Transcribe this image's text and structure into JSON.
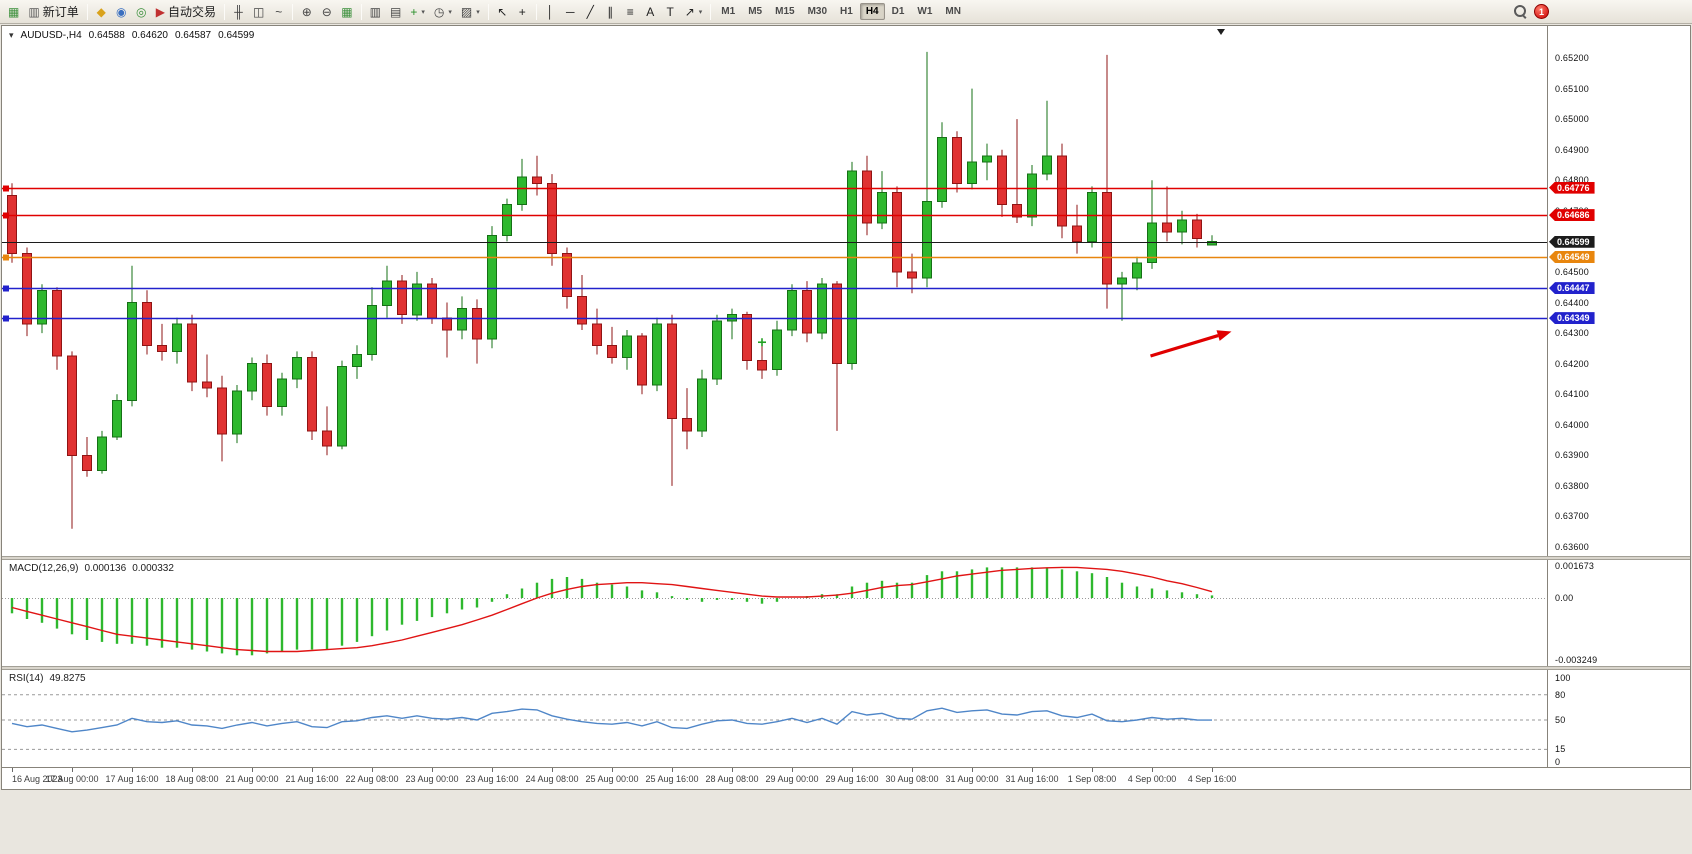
{
  "toolbar": {
    "groups": [
      {
        "items": [
          {
            "name": "new-chart",
            "glyph": "▦",
            "color": "#3a8f3a"
          },
          {
            "name": "new-order",
            "glyph": "▥",
            "color": "#5a5a5a",
            "label": "新订单"
          }
        ]
      },
      {
        "items": [
          {
            "name": "metaeditor",
            "glyph": "◆",
            "color": "#d9a21b"
          },
          {
            "name": "strategy-tester",
            "glyph": "◉",
            "color": "#3a6fc0"
          },
          {
            "name": "market-watch",
            "glyph": "◎",
            "color": "#3a8f3a"
          },
          {
            "name": "auto-trading",
            "glyph": "▶",
            "color": "#c03030",
            "label": "自动交易"
          }
        ]
      },
      {
        "items": [
          {
            "name": "bar-chart-mode",
            "glyph": "╫",
            "color": "#444444"
          },
          {
            "name": "candlestick-mode",
            "glyph": "◫",
            "color": "#444444"
          },
          {
            "name": "line-chart-mode",
            "glyph": "~",
            "color": "#444444"
          }
        ]
      },
      {
        "items": [
          {
            "name": "zoom-in",
            "glyph": "⊕",
            "color": "#444444"
          },
          {
            "name": "zoom-out",
            "glyph": "⊖",
            "color": "#444444"
          },
          {
            "name": "tile-windows",
            "glyph": "▦",
            "color": "#3a8f3a"
          }
        ]
      },
      {
        "items": [
          {
            "name": "auto-scroll",
            "glyph": "▥",
            "color": "#444444"
          },
          {
            "name": "chart-shift",
            "glyph": "▤",
            "color": "#444444"
          },
          {
            "name": "indicators",
            "glyph": "+",
            "color": "#2a8f2a",
            "caret": true
          },
          {
            "name": "periods",
            "glyph": "◷",
            "color": "#444444",
            "caret": true
          },
          {
            "name": "templates",
            "glyph": "▨",
            "color": "#444444",
            "caret": true
          }
        ]
      },
      {
        "items": [
          {
            "name": "cursor",
            "glyph": "↖",
            "color": "#222222"
          },
          {
            "name": "crosshair",
            "glyph": "+",
            "color": "#222222"
          }
        ]
      },
      {
        "items": [
          {
            "name": "vertical-line-tool",
            "glyph": "│",
            "color": "#222222"
          },
          {
            "name": "horizontal-line-tool",
            "glyph": "─",
            "color": "#222222"
          },
          {
            "name": "trend-line-tool",
            "glyph": "╱",
            "color": "#222222"
          },
          {
            "name": "equidistant-channel-tool",
            "glyph": "∥",
            "color": "#222222"
          },
          {
            "name": "fibonacci-tool",
            "glyph": "≡",
            "color": "#222222"
          },
          {
            "name": "text-tool",
            "glyph": "A",
            "color": "#222222"
          },
          {
            "name": "text-label-tool",
            "glyph": "T",
            "color": "#222222"
          },
          {
            "name": "arrows-tool",
            "glyph": "↗",
            "color": "#222222",
            "caret": true
          }
        ]
      }
    ],
    "timeframes": [
      {
        "label": "M1"
      },
      {
        "label": "M5"
      },
      {
        "label": "M15"
      },
      {
        "label": "M30"
      },
      {
        "label": "H1"
      },
      {
        "label": "H4",
        "active": true
      },
      {
        "label": "D1"
      },
      {
        "label": "W1"
      },
      {
        "label": "MN"
      }
    ],
    "notification_count": "1"
  },
  "chart": {
    "symbol_period": "AUDUSD-,H4",
    "ohlc": {
      "open": "0.64588",
      "high": "0.64620",
      "low": "0.64587",
      "close": "0.64599"
    }
  },
  "chart_data": {
    "type": "candlestick",
    "symbol": "AUDUSD",
    "timeframe": "H4",
    "bull_color": "#2eb82e",
    "bull_border": "#157015",
    "bear_color": "#e03232",
    "bear_border": "#8f1414",
    "candles_per_label": 4,
    "x_labels": [
      "16 Aug 2023",
      "17 Aug 00:00",
      "17 Aug 16:00",
      "18 Aug 08:00",
      "21 Aug 00:00",
      "21 Aug 16:00",
      "22 Aug 08:00",
      "23 Aug 00:00",
      "23 Aug 16:00",
      "24 Aug 08:00",
      "25 Aug 00:00",
      "25 Aug 16:00",
      "28 Aug 08:00",
      "29 Aug 00:00",
      "29 Aug 16:00",
      "30 Aug 08:00",
      "31 Aug 00:00",
      "31 Aug 16:00",
      "1 Sep 08:00",
      "4 Sep 00:00",
      "4 Sep 16:00"
    ],
    "price_axis": {
      "tick_labels": [
        "0.65200",
        "0.65100",
        "0.65000",
        "0.64900",
        "0.64800",
        "0.64700",
        "0.64600",
        "0.64500",
        "0.64400",
        "0.64300",
        "0.64200",
        "0.64100",
        "0.64000",
        "0.63900",
        "0.63800",
        "0.63700",
        "0.63600"
      ]
    },
    "candles": [
      [
        0.6475,
        0.6479,
        0.6453,
        0.6456
      ],
      [
        0.6456,
        0.6458,
        0.6429,
        0.6433
      ],
      [
        0.6433,
        0.6446,
        0.643,
        0.6444
      ],
      [
        0.6444,
        0.6445,
        0.6418,
        0.64225
      ],
      [
        0.64225,
        0.6424,
        0.6366,
        0.639
      ],
      [
        0.639,
        0.6396,
        0.6383,
        0.6385
      ],
      [
        0.6385,
        0.6398,
        0.6384,
        0.6396
      ],
      [
        0.6396,
        0.641,
        0.6395,
        0.6408
      ],
      [
        0.6408,
        0.6452,
        0.6406,
        0.644
      ],
      [
        0.644,
        0.6444,
        0.6423,
        0.6426
      ],
      [
        0.6426,
        0.6433,
        0.6421,
        0.6424
      ],
      [
        0.6424,
        0.6435,
        0.642,
        0.6433
      ],
      [
        0.6433,
        0.6436,
        0.6411,
        0.6414
      ],
      [
        0.6414,
        0.6423,
        0.6409,
        0.6412
      ],
      [
        0.6412,
        0.6416,
        0.6388,
        0.6397
      ],
      [
        0.6397,
        0.6413,
        0.6394,
        0.6411
      ],
      [
        0.6411,
        0.6422,
        0.6408,
        0.642
      ],
      [
        0.642,
        0.6423,
        0.6403,
        0.6406
      ],
      [
        0.6406,
        0.6417,
        0.6403,
        0.6415
      ],
      [
        0.6415,
        0.6424,
        0.6412,
        0.6422
      ],
      [
        0.6422,
        0.6424,
        0.6395,
        0.6398
      ],
      [
        0.6398,
        0.6406,
        0.639,
        0.6393
      ],
      [
        0.6393,
        0.6421,
        0.6392,
        0.6419
      ],
      [
        0.6419,
        0.6426,
        0.6415,
        0.6423
      ],
      [
        0.6423,
        0.6445,
        0.6421,
        0.6439
      ],
      [
        0.6439,
        0.6452,
        0.6435,
        0.6447
      ],
      [
        0.6447,
        0.6449,
        0.6433,
        0.6436
      ],
      [
        0.6436,
        0.645,
        0.6434,
        0.6446
      ],
      [
        0.6446,
        0.6448,
        0.6433,
        0.6435
      ],
      [
        0.6435,
        0.644,
        0.6422,
        0.6431
      ],
      [
        0.6431,
        0.6442,
        0.6428,
        0.6438
      ],
      [
        0.6438,
        0.6441,
        0.642,
        0.6428
      ],
      [
        0.6428,
        0.6465,
        0.6425,
        0.6462
      ],
      [
        0.6462,
        0.6474,
        0.646,
        0.6472
      ],
      [
        0.6472,
        0.6487,
        0.647,
        0.6481
      ],
      [
        0.6481,
        0.6488,
        0.6475,
        0.6479
      ],
      [
        0.6479,
        0.6482,
        0.6452,
        0.6456
      ],
      [
        0.6456,
        0.6458,
        0.6438,
        0.6442
      ],
      [
        0.6442,
        0.6449,
        0.6431,
        0.6433
      ],
      [
        0.6433,
        0.6438,
        0.6423,
        0.6426
      ],
      [
        0.6426,
        0.6432,
        0.642,
        0.6422
      ],
      [
        0.6422,
        0.6431,
        0.6418,
        0.6429
      ],
      [
        0.6429,
        0.643,
        0.641,
        0.6413
      ],
      [
        0.6413,
        0.6435,
        0.6411,
        0.6433
      ],
      [
        0.6433,
        0.6436,
        0.638,
        0.6402
      ],
      [
        0.6402,
        0.6412,
        0.6392,
        0.6398
      ],
      [
        0.6398,
        0.6418,
        0.6396,
        0.6415
      ],
      [
        0.6415,
        0.6436,
        0.6413,
        0.6434
      ],
      [
        0.6434,
        0.6438,
        0.6428,
        0.6436
      ],
      [
        0.6436,
        0.6437,
        0.6418,
        0.6421
      ],
      [
        0.6421,
        0.6427,
        0.6415,
        0.6418
      ],
      [
        0.6418,
        0.6434,
        0.6416,
        0.6431
      ],
      [
        0.6431,
        0.6446,
        0.6429,
        0.6444
      ],
      [
        0.6444,
        0.6447,
        0.6427,
        0.643
      ],
      [
        0.643,
        0.6448,
        0.6428,
        0.6446
      ],
      [
        0.6446,
        0.6447,
        0.6398,
        0.642
      ],
      [
        0.642,
        0.6486,
        0.6418,
        0.6483
      ],
      [
        0.6483,
        0.6488,
        0.6462,
        0.6466
      ],
      [
        0.6466,
        0.6483,
        0.6464,
        0.6476
      ],
      [
        0.6476,
        0.6478,
        0.6445,
        0.645
      ],
      [
        0.645,
        0.6456,
        0.6443,
        0.6448
      ],
      [
        0.6448,
        0.6522,
        0.6445,
        0.6473
      ],
      [
        0.6473,
        0.6499,
        0.6471,
        0.6494
      ],
      [
        0.6494,
        0.6496,
        0.6476,
        0.6479
      ],
      [
        0.6479,
        0.651,
        0.6477,
        0.6486
      ],
      [
        0.6486,
        0.6492,
        0.648,
        0.6488
      ],
      [
        0.6488,
        0.649,
        0.6468,
        0.6472
      ],
      [
        0.6472,
        0.65,
        0.6466,
        0.6468
      ],
      [
        0.6468,
        0.6485,
        0.6465,
        0.6482
      ],
      [
        0.6482,
        0.6506,
        0.648,
        0.6488
      ],
      [
        0.6488,
        0.6492,
        0.6461,
        0.6465
      ],
      [
        0.6465,
        0.6472,
        0.6456,
        0.646
      ],
      [
        0.646,
        0.6478,
        0.6458,
        0.6476
      ],
      [
        0.6476,
        0.6521,
        0.6438,
        0.6446
      ],
      [
        0.6446,
        0.645,
        0.6434,
        0.6448
      ],
      [
        0.6448,
        0.6455,
        0.6444,
        0.6453
      ],
      [
        0.6453,
        0.648,
        0.6451,
        0.6466
      ],
      [
        0.6466,
        0.6478,
        0.646,
        0.6463
      ],
      [
        0.6463,
        0.647,
        0.6459,
        0.6467
      ],
      [
        0.6467,
        0.6469,
        0.6458,
        0.6461
      ],
      [
        0.64588,
        0.6462,
        0.64587,
        0.64599
      ]
    ],
    "hlines": [
      {
        "price": 0.64776,
        "label": "0.64776",
        "color": "#e00000",
        "kind": "resistance"
      },
      {
        "price": 0.64686,
        "label": "0.64686",
        "color": "#e00000",
        "kind": "resistance"
      },
      {
        "price": 0.64599,
        "label": "0.64599",
        "color": "#1c1c1c",
        "kind": "current-price"
      },
      {
        "price": 0.64549,
        "label": "0.64549",
        "color": "#e8860e",
        "kind": "pivot"
      },
      {
        "price": 0.64447,
        "label": "0.64447",
        "color": "#2222cc",
        "kind": "support"
      },
      {
        "price": 0.64349,
        "label": "0.64349",
        "color": "#2222cc",
        "kind": "support"
      }
    ],
    "arrow": {
      "from_index": 75.9,
      "from_price": 0.64225,
      "to_index": 81.3,
      "to_price": 0.64305,
      "color": "#e00000"
    },
    "marker": {
      "index": 50,
      "price": 0.6427,
      "glyph": "plus",
      "color": "#22a022"
    },
    "shift_marker_index": 80.6,
    "macd": {
      "label": "MACD(12,26,9)",
      "value_main": "0.000136",
      "value_signal": "0.000332",
      "hist_color": "#2eb82e",
      "signal_color": "#e01414",
      "scale": [
        {
          "label": "0.001673",
          "value": 0.001673
        },
        {
          "label": "0.00",
          "value": 0
        },
        {
          "label": "-0.003249",
          "value": -0.003249
        }
      ],
      "hist": [
        -0.0008,
        -0.0011,
        -0.0013,
        -0.0016,
        -0.0019,
        -0.0022,
        -0.0023,
        -0.0024,
        -0.0024,
        -0.0025,
        -0.0026,
        -0.0026,
        -0.0027,
        -0.0028,
        -0.0029,
        -0.003,
        -0.003,
        -0.0029,
        -0.0028,
        -0.0027,
        -0.0027,
        -0.0027,
        -0.0025,
        -0.0023,
        -0.002,
        -0.0017,
        -0.0014,
        -0.0012,
        -0.001,
        -0.0008,
        -0.0006,
        -0.0005,
        -0.0002,
        0.0002,
        0.0005,
        0.0008,
        0.001,
        0.0011,
        0.001,
        0.0008,
        0.0007,
        0.0006,
        0.0004,
        0.0003,
        0.0001,
        -0.0001,
        -0.0002,
        -0.0001,
        -0.0001,
        -0.0002,
        -0.0003,
        -0.0002,
        0.0,
        0.0001,
        0.0002,
        0.0002,
        0.0006,
        0.0008,
        0.0009,
        0.0008,
        0.0008,
        0.0012,
        0.0014,
        0.0014,
        0.0015,
        0.0016,
        0.0016,
        0.0016,
        0.0016,
        0.0016,
        0.0015,
        0.0014,
        0.0013,
        0.0011,
        0.0008,
        0.0006,
        0.0005,
        0.0004,
        0.0003,
        0.0002,
        0.000136
      ],
      "signal": [
        -0.0005,
        -0.0007,
        -0.0009,
        -0.0011,
        -0.0013,
        -0.0015,
        -0.0017,
        -0.0019,
        -0.002,
        -0.0021,
        -0.0022,
        -0.0023,
        -0.0024,
        -0.0025,
        -0.0026,
        -0.0027,
        -0.00275,
        -0.0028,
        -0.0028,
        -0.0028,
        -0.00275,
        -0.0027,
        -0.00265,
        -0.0026,
        -0.0025,
        -0.00235,
        -0.0022,
        -0.002,
        -0.0018,
        -0.0016,
        -0.0014,
        -0.00115,
        -0.0009,
        -0.0006,
        -0.0003,
        0.0,
        0.00025,
        0.00045,
        0.0006,
        0.0007,
        0.00075,
        0.0008,
        0.0008,
        0.00075,
        0.0007,
        0.0006,
        0.0005,
        0.0004,
        0.0003,
        0.0002,
        0.0001,
        5e-05,
        5e-05,
        5e-05,
        0.0001,
        0.00015,
        0.00025,
        0.0004,
        0.00055,
        0.00065,
        0.0007,
        0.00085,
        0.001,
        0.00115,
        0.00125,
        0.00135,
        0.00145,
        0.0015,
        0.00155,
        0.00158,
        0.0016,
        0.0016,
        0.00155,
        0.0015,
        0.0014,
        0.00125,
        0.0011,
        0.0009,
        0.00075,
        0.00055,
        0.000332
      ]
    },
    "rsi": {
      "label": "RSI(14)",
      "value_label": "49.8275",
      "color": "#4f86c8",
      "levels": [
        80,
        50,
        15
      ],
      "scale_labels": [
        {
          "label": "100",
          "value": 100
        },
        {
          "label": "80",
          "value": 80
        },
        {
          "label": "50",
          "value": 50
        },
        {
          "label": "15",
          "value": 15
        },
        {
          "label": "0",
          "value": 0
        }
      ],
      "values": [
        46,
        42,
        44,
        40,
        36,
        38,
        41,
        44,
        52,
        48,
        47,
        49,
        44,
        43,
        40,
        44,
        47,
        43,
        46,
        48,
        42,
        41,
        48,
        49,
        53,
        55,
        52,
        55,
        52,
        51,
        53,
        50,
        58,
        60,
        63,
        62,
        55,
        51,
        48,
        46,
        45,
        47,
        43,
        48,
        41,
        40,
        45,
        49,
        50,
        46,
        45,
        48,
        52,
        47,
        52,
        45,
        60,
        56,
        58,
        52,
        51,
        61,
        64,
        59,
        61,
        62,
        57,
        56,
        60,
        61,
        55,
        53,
        57,
        49,
        48,
        50,
        53,
        51,
        52,
        50,
        49.8275
      ]
    }
  }
}
